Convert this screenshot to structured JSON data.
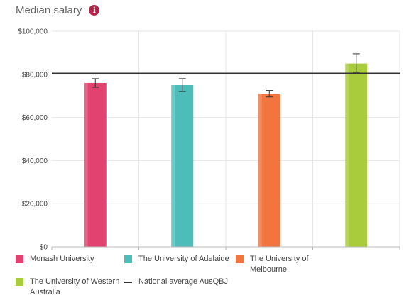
{
  "header": {
    "title": "Median salary",
    "info_icon": "info-icon"
  },
  "chart_data": {
    "type": "bar",
    "title": "Median salary",
    "categories": [
      "Monash University",
      "The University of Adelaide",
      "The University of Melbourne",
      "The University of Western Australia"
    ],
    "values": [
      76000,
      75000,
      71000,
      85000
    ],
    "error_low": [
      74000,
      72000,
      69500,
      81000
    ],
    "error_high": [
      78000,
      78000,
      72500,
      89500
    ],
    "colors": [
      "#e2426f",
      "#4dbdba",
      "#f2753e",
      "#a8cc3b"
    ],
    "reference_line": {
      "name": "National average AusQBJ",
      "value": 80500,
      "color": "#333333"
    },
    "ylim": [
      0,
      100000
    ],
    "yticks": [
      0,
      20000,
      40000,
      60000,
      80000,
      100000
    ],
    "ytick_labels": [
      "$0",
      "$20,000",
      "$40,000",
      "$60,000",
      "$80,000",
      "$100,000"
    ],
    "grid": true,
    "legend_position": "bottom"
  },
  "legend": {
    "items": [
      {
        "label_line1": "Monash University",
        "label_line2": "",
        "color": "#e2426f"
      },
      {
        "label_line1": "The University of Adelaide",
        "label_line2": "",
        "color": "#4dbdba"
      },
      {
        "label_line1": "The University of",
        "label_line2": "Melbourne",
        "color": "#f2753e"
      },
      {
        "label_line1": "The University of Western",
        "label_line2": "Australia",
        "color": "#a8cc3b"
      },
      {
        "label_line1": "National average AusQBJ",
        "label_line2": "",
        "color": "#333333"
      }
    ]
  }
}
